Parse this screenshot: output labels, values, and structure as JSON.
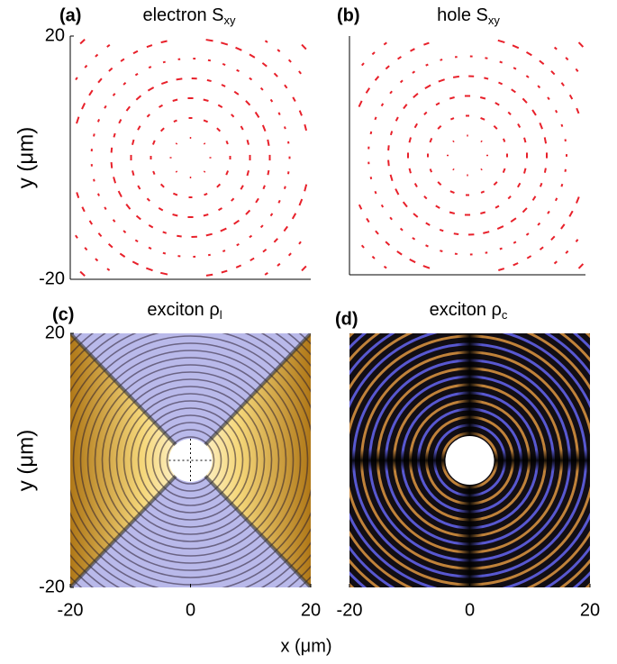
{
  "chart_data": [
    {
      "type": "quiver",
      "panel": "(a)",
      "title": "electron S",
      "title_sub": "xy",
      "ylabel": "y (μm)",
      "xlim": [
        -20,
        20
      ],
      "ylim": [
        -20,
        20
      ],
      "yticks": [
        -20,
        20
      ],
      "color": "#e8202a"
    },
    {
      "type": "quiver",
      "panel": "(b)",
      "title": "hole S",
      "title_sub": "xy",
      "xlim": [
        -20,
        20
      ],
      "ylim": [
        -20,
        20
      ],
      "color": "#e8202a"
    },
    {
      "type": "heatmap",
      "panel": "(c)",
      "title": "exciton ρ",
      "title_sub": "l",
      "ylabel": "y (μm)",
      "xlim": [
        -20,
        20
      ],
      "ylim": [
        -20,
        20
      ],
      "yticks": [
        -20,
        20
      ],
      "xticks": [
        -20,
        0,
        20
      ]
    },
    {
      "type": "heatmap",
      "panel": "(d)",
      "title": "exciton ρ",
      "title_sub": "c",
      "xlim": [
        -20,
        20
      ],
      "ylim": [
        -20,
        20
      ],
      "xticks": [
        -20,
        0,
        20
      ]
    }
  ],
  "figure": {
    "xlabel": "x (μm)"
  }
}
